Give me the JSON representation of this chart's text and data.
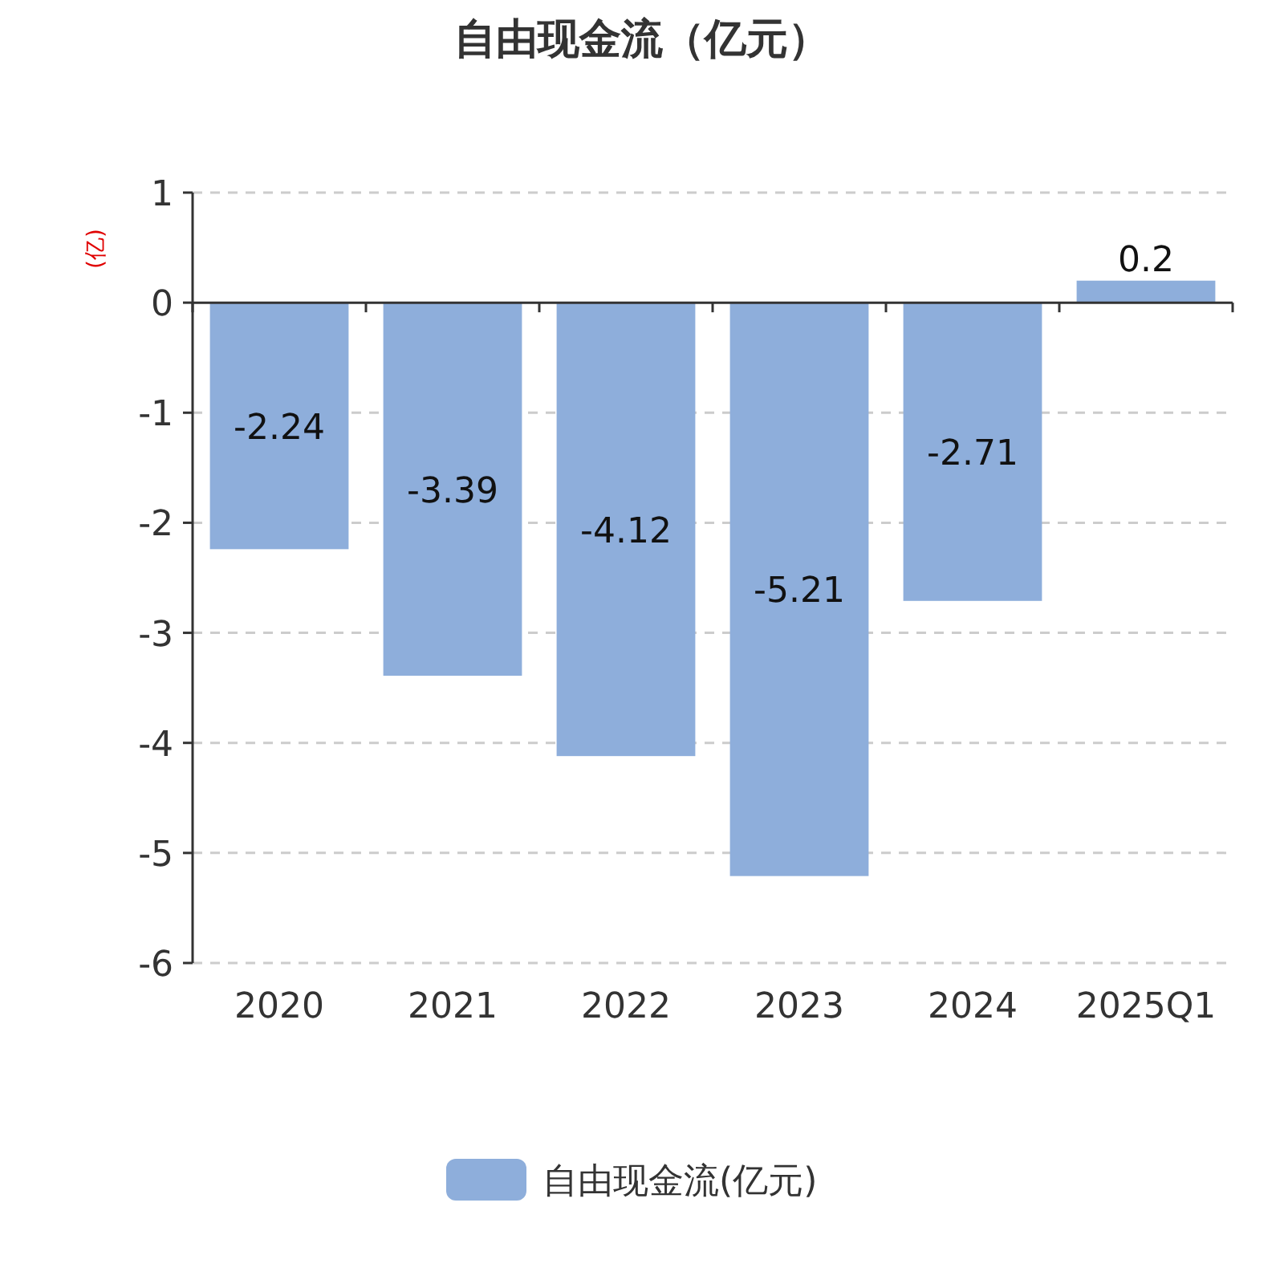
{
  "chart_data": {
    "type": "bar",
    "title": "自由现金流（亿元）",
    "ylabel": "(亿)",
    "categories": [
      "2020",
      "2021",
      "2022",
      "2023",
      "2024",
      "2025Q1"
    ],
    "series": [
      {
        "name": "自由现金流(亿元)",
        "color": "#8eaedb",
        "values": [
          -2.24,
          -3.39,
          -4.12,
          -5.21,
          -2.71,
          0.2
        ]
      }
    ],
    "ylim": [
      -6,
      1
    ],
    "yticks": [
      -6,
      -5,
      -4,
      -3,
      -2,
      -1,
      0,
      1
    ],
    "grid": "y",
    "data_labels": true,
    "legend": "bottom"
  }
}
